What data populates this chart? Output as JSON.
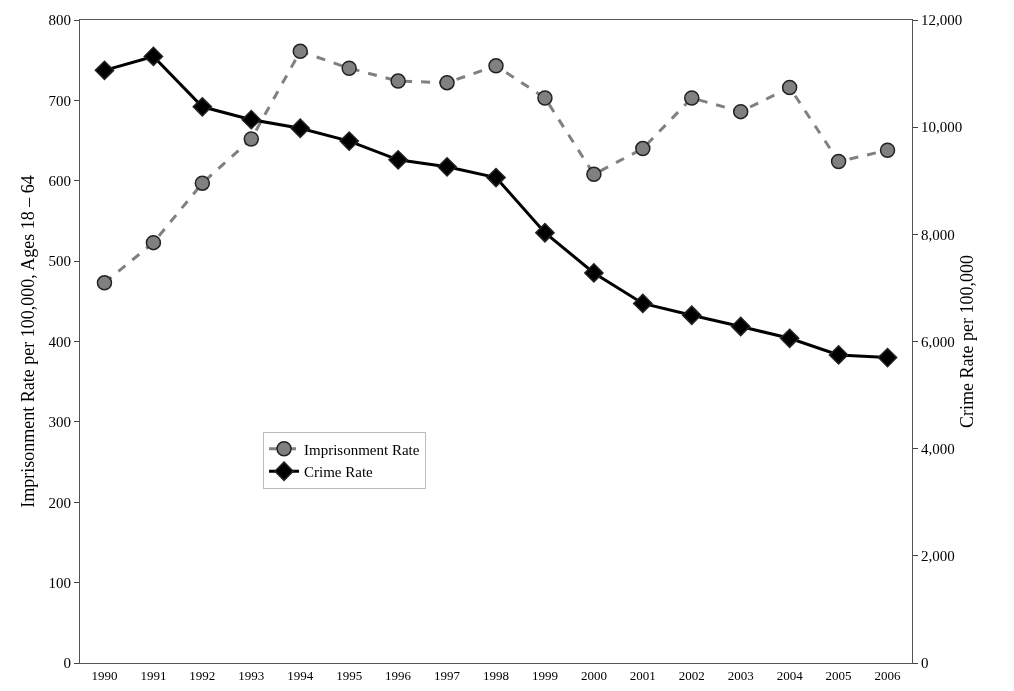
{
  "chart_data": {
    "type": "line",
    "ylabel": "Imprisonment Rate per 100,000, Ages 18 – 64",
    "y2label": "Crime Rate per 100,000",
    "categories": [
      "1990",
      "1991",
      "1992",
      "1993",
      "1994",
      "1995",
      "1996",
      "1997",
      "1998",
      "1999",
      "2000",
      "2001",
      "2002",
      "2003",
      "2004",
      "2005",
      "2006"
    ],
    "series": [
      {
        "name": "Imprisonment Rate",
        "color": "#808080",
        "marker": "circle",
        "line_style": "dashed",
        "values": [
          473,
          523,
          597,
          652,
          761,
          740,
          724,
          722,
          743,
          703,
          608,
          640,
          703,
          686,
          716,
          624,
          638
        ]
      },
      {
        "name": "Crime Rate",
        "color": "#000000",
        "marker": "diamond",
        "line_style": "solid",
        "axis": "y2",
        "values": [
          11060,
          11320,
          10380,
          10140,
          9980,
          9740,
          9390,
          9260,
          9060,
          8030,
          7280,
          6710,
          6490,
          6280,
          6060,
          5750,
          5700
        ]
      }
    ],
    "ylim": [
      0,
      800
    ],
    "yticks": [
      0,
      100,
      200,
      300,
      400,
      500,
      600,
      700,
      800
    ],
    "y2lim": [
      0,
      12000
    ],
    "y2ticks": [
      {
        "value": 0,
        "label": "0"
      },
      {
        "value": 2000,
        "label": "2,000"
      },
      {
        "value": 4000,
        "label": "4,000"
      },
      {
        "value": 6000,
        "label": "6,000"
      },
      {
        "value": 8000,
        "label": "8,000"
      },
      {
        "value": 10000,
        "label": "10,000"
      },
      {
        "value": 12000,
        "label": "12,000"
      }
    ],
    "grid": false,
    "legend": "bottom"
  }
}
